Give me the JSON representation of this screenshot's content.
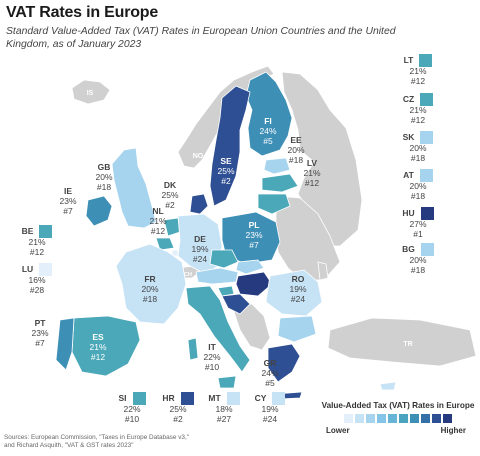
{
  "title": "VAT Rates in Europe",
  "subtitle": "Standard Value-Added Tax (VAT) Rates in European Union Countries and the United Kingdom, as of January 2023",
  "colors": {
    "ramp": [
      "#e3f0fb",
      "#c6e3f6",
      "#a6d4ef",
      "#84c4e6",
      "#66b5d6",
      "#4aa3bf",
      "#3d8fb6",
      "#356fa8",
      "#2e4f93",
      "#263a80"
    ],
    "non_eu": "#d0d0d0",
    "lt": "#4aa8b8",
    "cz": "#4aa8b8",
    "sk": "#a6d4ef",
    "at": "#a6d4ef",
    "hu": "#263a80",
    "bg": "#a6d4ef",
    "be": "#4aa8b8",
    "lu": "#e3f0fb",
    "si": "#4aa8b8",
    "hr": "#2e4f93",
    "mt": "#c6e3f6",
    "cy": "#c6e3f6"
  },
  "non_eu_labels": {
    "is": "IS",
    "no": "NO",
    "ch": "CH",
    "tr": "TR"
  },
  "map_labels": {
    "fi": {
      "code": "FI",
      "rate": "24%",
      "rank": "#5"
    },
    "se": {
      "code": "SE",
      "rate": "25%",
      "rank": "#2"
    },
    "ee": {
      "code": "EE",
      "rate": "20%",
      "rank": "#18"
    },
    "lv": {
      "code": "LV",
      "rate": "21%",
      "rank": "#12"
    },
    "gb": {
      "code": "GB",
      "rate": "20%",
      "rank": "#18"
    },
    "ie": {
      "code": "IE",
      "rate": "23%",
      "rank": "#7"
    },
    "dk": {
      "code": "DK",
      "rate": "25%",
      "rank": "#2"
    },
    "nl": {
      "code": "NL",
      "rate": "21%",
      "rank": "#12"
    },
    "de": {
      "code": "DE",
      "rate": "19%",
      "rank": "#24"
    },
    "pl": {
      "code": "PL",
      "rate": "23%",
      "rank": "#7"
    },
    "fr": {
      "code": "FR",
      "rate": "20%",
      "rank": "#18"
    },
    "ro": {
      "code": "RO",
      "rate": "19%",
      "rank": "#24"
    },
    "pt": {
      "code": "PT",
      "rate": "23%",
      "rank": "#7"
    },
    "es": {
      "code": "ES",
      "rate": "21%",
      "rank": "#12"
    },
    "it": {
      "code": "IT",
      "rate": "22%",
      "rank": "#10"
    },
    "gr": {
      "code": "GR",
      "rate": "24%",
      "rank": "#5"
    }
  },
  "side_right": [
    {
      "key": "lt",
      "code": "LT",
      "rate": "21%",
      "rank": "#12"
    },
    {
      "key": "cz",
      "code": "CZ",
      "rate": "21%",
      "rank": "#12"
    },
    {
      "key": "sk",
      "code": "SK",
      "rate": "20%",
      "rank": "#18"
    },
    {
      "key": "at",
      "code": "AT",
      "rate": "20%",
      "rank": "#18"
    },
    {
      "key": "hu",
      "code": "HU",
      "rate": "27%",
      "rank": "#1"
    },
    {
      "key": "bg",
      "code": "BG",
      "rate": "20%",
      "rank": "#18"
    }
  ],
  "side_left": [
    {
      "key": "be",
      "code": "BE",
      "rate": "21%",
      "rank": "#12"
    },
    {
      "key": "lu",
      "code": "LU",
      "rate": "16%",
      "rank": "#28"
    }
  ],
  "side_bottom": [
    {
      "key": "si",
      "code": "SI",
      "rate": "22%",
      "rank": "#10"
    },
    {
      "key": "hr",
      "code": "HR",
      "rate": "25%",
      "rank": "#2"
    },
    {
      "key": "mt",
      "code": "MT",
      "rate": "18%",
      "rank": "#27"
    },
    {
      "key": "cy",
      "code": "CY",
      "rate": "19%",
      "rank": "#24"
    }
  ],
  "legend": {
    "title": "Value-Added Tax (VAT) Rates in Europe",
    "low": "Lower",
    "high": "Higher"
  },
  "source": {
    "line1": "Sources: European Commission, \"Taxes in Europe Database v3,\"",
    "line2": "and Richard Asquith, \"VAT & GST rates 2023\""
  }
}
